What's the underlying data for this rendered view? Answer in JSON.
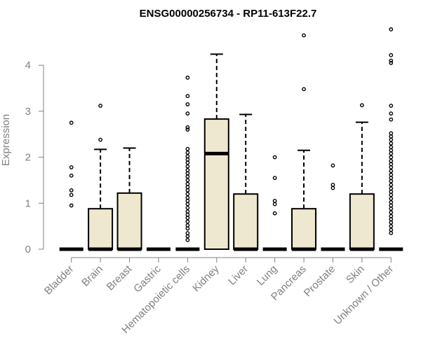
{
  "chart_data": {
    "type": "box",
    "title": "ENSG00000256734 - RP11-613F22.7",
    "xlabel": "",
    "ylabel": "Expression",
    "ylim": [
      0,
      4.9
    ],
    "yticks": [
      0,
      1,
      2,
      3,
      4
    ],
    "categories": [
      "Bladder",
      "Brain",
      "Breast",
      "Gastric",
      "Hematopoietic cells",
      "Kidney",
      "Liver",
      "Lung",
      "Pancreas",
      "Prostate",
      "Skin",
      "Unknown / Other"
    ],
    "boxes": [
      {
        "q1": 0,
        "median": 0,
        "q3": 0,
        "whisker_low": 0,
        "whisker_high": 0,
        "outliers": [
          0.95,
          1.18,
          1.28,
          1.6,
          1.78,
          2.75
        ]
      },
      {
        "q1": 0,
        "median": 0,
        "q3": 0.88,
        "whisker_low": 0,
        "whisker_high": 2.17,
        "outliers": [
          2.38,
          3.12
        ]
      },
      {
        "q1": 0,
        "median": 0,
        "q3": 1.22,
        "whisker_low": 0,
        "whisker_high": 2.2,
        "outliers": []
      },
      {
        "q1": 0,
        "median": 0,
        "q3": 0,
        "whisker_low": 0,
        "whisker_high": 0,
        "outliers": []
      },
      {
        "q1": 0,
        "median": 0,
        "q3": 0,
        "whisker_low": 0,
        "whisker_high": 0,
        "outliers": [
          0.2,
          0.28,
          0.35,
          0.45,
          0.52,
          0.6,
          0.68,
          0.75,
          0.82,
          0.9,
          0.98,
          1.05,
          1.12,
          1.2,
          1.28,
          1.35,
          1.42,
          1.5,
          1.58,
          1.65,
          1.72,
          1.8,
          1.88,
          1.95,
          2.02,
          2.1,
          2.18,
          2.6,
          2.65,
          2.95,
          3.15,
          3.33,
          3.73
        ]
      },
      {
        "q1": 0,
        "median": 2.08,
        "q3": 2.83,
        "whisker_low": 0,
        "whisker_high": 4.24,
        "outliers": []
      },
      {
        "q1": 0,
        "median": 0,
        "q3": 1.2,
        "whisker_low": 0,
        "whisker_high": 2.93,
        "outliers": []
      },
      {
        "q1": 0,
        "median": 0,
        "q3": 0,
        "whisker_low": 0,
        "whisker_high": 0,
        "outliers": [
          0.78,
          0.98,
          1.05,
          1.55,
          2.0
        ]
      },
      {
        "q1": 0,
        "median": 0,
        "q3": 0.88,
        "whisker_low": 0,
        "whisker_high": 2.15,
        "outliers": [
          3.48,
          4.65
        ]
      },
      {
        "q1": 0,
        "median": 0,
        "q3": 0,
        "whisker_low": 0,
        "whisker_high": 0,
        "outliers": [
          1.33,
          1.4,
          1.82
        ]
      },
      {
        "q1": 0,
        "median": 0,
        "q3": 1.2,
        "whisker_low": 0,
        "whisker_high": 2.76,
        "outliers": [
          3.13
        ]
      },
      {
        "q1": 0,
        "median": 0,
        "q3": 0,
        "whisker_low": 0,
        "whisker_high": 0,
        "outliers": [
          0.35,
          0.42,
          0.5,
          0.58,
          0.65,
          0.72,
          0.8,
          0.88,
          0.95,
          1.02,
          1.1,
          1.18,
          1.25,
          1.32,
          1.4,
          1.48,
          1.55,
          1.62,
          1.7,
          1.78,
          1.85,
          1.92,
          2.0,
          2.08,
          2.15,
          2.22,
          2.3,
          2.38,
          2.45,
          2.52,
          2.82,
          2.95,
          3.12,
          4.05,
          4.1,
          4.22,
          4.78
        ]
      }
    ],
    "box_fill": "#efe8d0",
    "stroke": "#000000",
    "axis_color": "#808080",
    "grid": false
  }
}
